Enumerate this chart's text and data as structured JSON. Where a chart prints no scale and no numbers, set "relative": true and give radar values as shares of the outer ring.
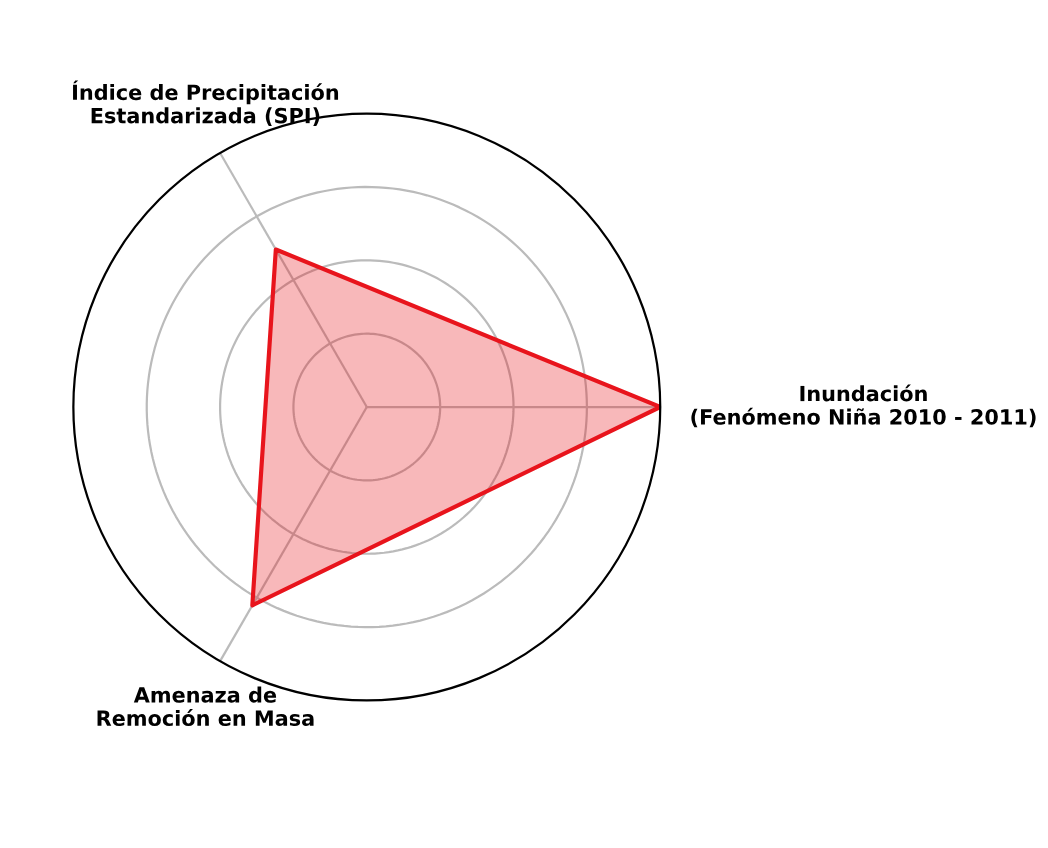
{
  "chart_data": {
    "type": "radar",
    "relative": true,
    "grid": true,
    "categories": [
      "Inundación\n(Fenómeno Niña 2010 - 2011)",
      "Amenaza de\nRemoción en Masa",
      "Índice de Precipitación\nEstandarizada (SPI)"
    ],
    "series": [
      {
        "color": "#e8141c",
        "values": [
          1.0,
          0.78,
          0.62
        ]
      }
    ]
  }
}
